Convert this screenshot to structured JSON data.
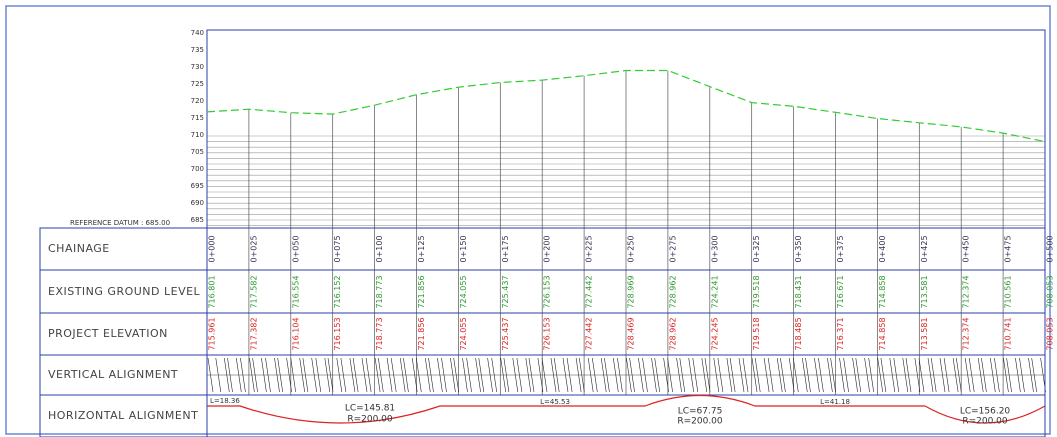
{
  "profile": {
    "reference_datum": "REFERENCE DATUM : 685.00",
    "elevation_labels": [
      740,
      735,
      730,
      725,
      720,
      715,
      710,
      705,
      700,
      695,
      690,
      685
    ]
  },
  "table": {
    "row_labels": [
      "CHAINAGE",
      "EXISTING GROUND LEVEL",
      "PROJECT ELEVATION",
      "VERTICAL ALIGNMENT",
      "HORIZONTAL ALIGNMENT"
    ],
    "chainage": [
      "0+000",
      "0+025",
      "0+050",
      "0+075",
      "0+100",
      "0+125",
      "0+150",
      "0+175",
      "0+200",
      "0+225",
      "0+250",
      "0+275",
      "0+300",
      "0+325",
      "0+350",
      "0+375",
      "0+400",
      "0+425",
      "0+450",
      "0+475",
      "0+500"
    ],
    "existing_ground_level": [
      716.801,
      717.582,
      716.554,
      716.152,
      718.773,
      721.856,
      724.055,
      725.437,
      726.153,
      727.442,
      728.969,
      728.962,
      724.241,
      719.518,
      718.431,
      716.671,
      714.858,
      713.581,
      712.374,
      710.561,
      708.053
    ],
    "project_elevation": [
      715.961,
      717.382,
      716.104,
      716.153,
      718.773,
      721.856,
      724.055,
      725.437,
      726.153,
      727.442,
      728.469,
      728.962,
      724.245,
      719.518,
      718.485,
      716.371,
      714.858,
      713.581,
      712.374,
      710.741,
      708.053
    ]
  },
  "horizontal_alignment": [
    "L=18.36",
    "LC=145.81",
    "R=200.00",
    "L=45.53",
    "LC=67.75",
    "R=200.00",
    "L=41.18",
    "LC=156.20",
    "R=200.00"
  ]
}
